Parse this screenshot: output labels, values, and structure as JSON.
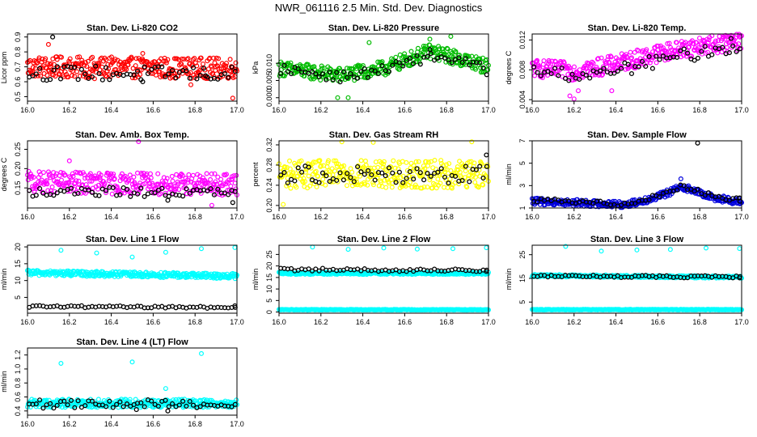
{
  "page_title": "NWR_061116  2.5 Min. Std. Dev. Diagnostics",
  "chart_data": [
    {
      "type": "scatter",
      "title": "Stan. Dev. Li-820 CO2",
      "ylabel": "Licor ppm",
      "color": "#ff0000",
      "xlim": [
        16.0,
        17.0
      ],
      "ylim": [
        0.47,
        0.92
      ],
      "xticks": [
        16.0,
        16.2,
        16.4,
        16.6,
        16.8,
        17.0
      ],
      "xtick_labels": [
        "16.0",
        "16.2",
        "16.4",
        "16.6",
        "16.8",
        "17.0"
      ],
      "yticks": [
        0.5,
        0.6,
        0.7,
        0.8,
        0.9
      ],
      "ytick_labels": [
        "0.5",
        "0.6",
        "0.7",
        "0.8",
        "0.9"
      ],
      "trend": [
        [
          16.0,
          0.7
        ],
        [
          17.0,
          0.69
        ]
      ],
      "spread": 0.07,
      "black_trend": [
        [
          16.0,
          0.66
        ],
        [
          17.0,
          0.65
        ]
      ],
      "black_spread": 0.05,
      "series": [
        {
          "name": "colored",
          "x": [
            16.1,
            16.32,
            16.55,
            16.78,
            16.98
          ],
          "y": [
            0.85,
            0.62,
            0.79,
            0.58,
            0.49
          ]
        },
        {
          "name": "black",
          "x": [
            16.12,
            16.55,
            16.85
          ],
          "y": [
            0.9,
            0.6,
            0.64
          ]
        }
      ]
    },
    {
      "type": "scatter",
      "title": "Stan. Dev. Li-820 Pressure",
      "ylabel": "kPa",
      "color": "#00bb00",
      "xlim": [
        16.0,
        17.0
      ],
      "ylim": [
        -0.001,
        0.0185
      ],
      "xticks": [
        16.0,
        16.2,
        16.4,
        16.6,
        16.8,
        17.0
      ],
      "xtick_labels": [
        "16.0",
        "16.2",
        "16.4",
        "16.6",
        "16.8",
        "17.0"
      ],
      "yticks": [
        0.0,
        0.005,
        0.01
      ],
      "ytick_labels": [
        "0.000",
        "0.005",
        "0.010"
      ],
      "trend": [
        [
          16.0,
          0.0085
        ],
        [
          16.3,
          0.0065
        ],
        [
          16.5,
          0.0085
        ],
        [
          16.72,
          0.0135
        ],
        [
          16.85,
          0.0115
        ],
        [
          17.0,
          0.009
        ]
      ],
      "spread": 0.0022,
      "black_trend": [
        [
          16.0,
          0.0085
        ],
        [
          16.3,
          0.006
        ],
        [
          16.5,
          0.008
        ],
        [
          16.72,
          0.012
        ],
        [
          16.85,
          0.011
        ],
        [
          17.0,
          0.008
        ]
      ],
      "black_spread": 0.0015,
      "series": [
        {
          "name": "colored",
          "x": [
            16.28,
            16.33,
            16.72,
            16.82,
            16.43
          ],
          "y": [
            0.0,
            0.0,
            0.017,
            0.0178,
            0.016
          ]
        },
        {
          "name": "black",
          "x": [
            16.72
          ],
          "y": [
            0.014
          ]
        }
      ]
    },
    {
      "type": "scatter",
      "title": "Stan. Dev. Li-820 Temp.",
      "ylabel": "degrees C",
      "color": "#ff00ff",
      "xlim": [
        16.0,
        17.0
      ],
      "ylim": [
        0.0038,
        0.0128
      ],
      "xticks": [
        16.0,
        16.2,
        16.4,
        16.6,
        16.8,
        17.0
      ],
      "xtick_labels": [
        "16.0",
        "16.2",
        "16.4",
        "16.6",
        "16.8",
        "17.0"
      ],
      "yticks": [
        0.004,
        0.008,
        0.012
      ],
      "ytick_labels": [
        "0.004",
        "0.008",
        "0.012"
      ],
      "trend": [
        [
          16.0,
          0.0082
        ],
        [
          16.2,
          0.0078
        ],
        [
          16.4,
          0.0088
        ],
        [
          16.6,
          0.0102
        ],
        [
          16.8,
          0.0112
        ],
        [
          17.0,
          0.0118
        ]
      ],
      "spread": 0.0012,
      "black_trend": [
        [
          16.0,
          0.0078
        ],
        [
          16.3,
          0.0072
        ],
        [
          16.5,
          0.0085
        ],
        [
          16.7,
          0.0098
        ],
        [
          17.0,
          0.0112
        ]
      ],
      "black_spread": 0.0009,
      "series": [
        {
          "name": "colored",
          "x": [
            16.18,
            16.2,
            16.22,
            16.38,
            16.93
          ],
          "y": [
            0.0045,
            0.0041,
            0.0052,
            0.0052,
            0.0125
          ]
        },
        {
          "name": "black",
          "x": [
            16.95
          ],
          "y": [
            0.0122
          ]
        }
      ]
    },
    {
      "type": "scatter",
      "title": "Stan. Dev. Amb. Box Temp.",
      "ylabel": "degrees C",
      "color": "#ff00ff",
      "xlim": [
        16.0,
        17.0
      ],
      "ylim": [
        0.098,
        0.272
      ],
      "xticks": [
        16.0,
        16.2,
        16.4,
        16.6,
        16.8,
        17.0
      ],
      "xtick_labels": [
        "16.0",
        "16.2",
        "16.4",
        "16.6",
        "16.8",
        "17.0"
      ],
      "yticks": [
        0.15,
        0.2,
        0.25
      ],
      "ytick_labels": [
        "0.15",
        "0.20",
        "0.25"
      ],
      "trend": [
        [
          16.0,
          0.165
        ],
        [
          17.0,
          0.158
        ]
      ],
      "spread": 0.028,
      "black_trend": [
        [
          16.0,
          0.14
        ],
        [
          17.0,
          0.138
        ]
      ],
      "black_spread": 0.012,
      "series": [
        {
          "name": "colored",
          "x": [
            16.53,
            16.2,
            16.88
          ],
          "y": [
            0.27,
            0.22,
            0.105
          ]
        },
        {
          "name": "black",
          "x": [
            16.67,
            16.98
          ],
          "y": [
            0.118,
            0.112
          ]
        }
      ]
    },
    {
      "type": "scatter",
      "title": "Stan. Dev. Gas Stream RH",
      "ylabel": "percent",
      "color": "#ffff00",
      "xlim": [
        16.0,
        17.0
      ],
      "ylim": [
        0.195,
        0.328
      ],
      "xticks": [
        16.0,
        16.2,
        16.4,
        16.6,
        16.8,
        17.0
      ],
      "xtick_labels": [
        "16.0",
        "16.2",
        "16.4",
        "16.6",
        "16.8",
        "17.0"
      ],
      "yticks": [
        0.2,
        0.24,
        0.28,
        0.32
      ],
      "ytick_labels": [
        "0.20",
        "0.24",
        "0.28",
        "0.32"
      ],
      "trend": [
        [
          16.0,
          0.262
        ],
        [
          17.0,
          0.262
        ]
      ],
      "spread": 0.028,
      "black_trend": [
        [
          16.0,
          0.262
        ],
        [
          17.0,
          0.262
        ]
      ],
      "black_spread": 0.018,
      "series": [
        {
          "name": "colored",
          "x": [
            16.3,
            16.45,
            16.92,
            16.02
          ],
          "y": [
            0.326,
            0.325,
            0.326,
            0.202
          ]
        },
        {
          "name": "black",
          "x": [
            16.99
          ],
          "y": [
            0.3
          ]
        }
      ]
    },
    {
      "type": "scatter",
      "title": "Stan. Dev. Sample Flow",
      "ylabel": "ml/min",
      "color": "#0000dd",
      "xlim": [
        16.0,
        17.0
      ],
      "ylim": [
        1.0,
        7.0
      ],
      "xticks": [
        16.0,
        16.2,
        16.4,
        16.6,
        16.8,
        17.0
      ],
      "xtick_labels": [
        "16.0",
        "16.2",
        "16.4",
        "16.6",
        "16.8",
        "17.0"
      ],
      "yticks": [
        1,
        3,
        5,
        7
      ],
      "ytick_labels": [
        "1",
        "3",
        "5",
        "7"
      ],
      "trend": [
        [
          16.0,
          1.6
        ],
        [
          16.3,
          1.4
        ],
        [
          16.45,
          1.3
        ],
        [
          16.6,
          2.0
        ],
        [
          16.72,
          2.9
        ],
        [
          16.85,
          2.0
        ],
        [
          17.0,
          1.5
        ]
      ],
      "spread": 0.3,
      "black_trend": [
        [
          16.0,
          1.7
        ],
        [
          16.3,
          1.45
        ],
        [
          16.45,
          1.35
        ],
        [
          16.6,
          2.1
        ],
        [
          16.72,
          3.0
        ],
        [
          16.85,
          2.1
        ],
        [
          17.0,
          1.7
        ]
      ],
      "black_spread": 0.2,
      "series": [
        {
          "name": "colored",
          "x": [
            16.71
          ],
          "y": [
            3.6
          ]
        },
        {
          "name": "black",
          "x": [
            16.79,
            16.99
          ],
          "y": [
            6.8,
            1.9
          ]
        }
      ]
    },
    {
      "type": "scatter",
      "title": "Stan. Dev. Line 1 Flow",
      "ylabel": "ml/min",
      "color": "#00ffff",
      "xlim": [
        16.0,
        17.0
      ],
      "ylim": [
        0.3,
        20.5
      ],
      "xticks": [
        16.0,
        16.2,
        16.4,
        16.6,
        16.8,
        17.0
      ],
      "xtick_labels": [
        "16.0",
        "16.2",
        "16.4",
        "16.6",
        "16.8",
        "17.0"
      ],
      "yticks": [
        5,
        10,
        15,
        20
      ],
      "ytick_labels": [
        "5",
        "10",
        "15",
        "20"
      ],
      "trend": [
        [
          16.0,
          12.3
        ],
        [
          17.0,
          11.3
        ]
      ],
      "spread": 0.8,
      "black_trend": [
        [
          16.0,
          2.3
        ],
        [
          17.0,
          2.0
        ]
      ],
      "black_spread": 0.3,
      "series": [
        {
          "name": "colored",
          "x": [
            16.16,
            16.33,
            16.5,
            16.66,
            16.83,
            16.99
          ],
          "y": [
            19.0,
            18.2,
            17.0,
            18.4,
            19.5,
            19.8
          ]
        },
        {
          "name": "black",
          "x": [
            16.99
          ],
          "y": [
            2.5
          ]
        }
      ]
    },
    {
      "type": "scatter",
      "title": "Stan. Dev. Line 2 Flow",
      "ylabel": "ml/min",
      "color": "#00ffff",
      "xlim": [
        16.0,
        17.0
      ],
      "ylim": [
        -0.5,
        29.0
      ],
      "xticks": [
        16.0,
        16.2,
        16.4,
        16.6,
        16.8,
        17.0
      ],
      "xtick_labels": [
        "16.0",
        "16.2",
        "16.4",
        "16.6",
        "16.8",
        "17.0"
      ],
      "yticks": [
        0,
        5,
        10,
        15,
        20,
        25
      ],
      "ytick_labels": [
        "0",
        "5",
        "10",
        "15",
        "20",
        "25"
      ],
      "trend": [
        [
          16.0,
          16.8
        ],
        [
          17.0,
          16.8
        ]
      ],
      "spread": 0.5,
      "black_trend": [
        [
          16.0,
          18.5
        ],
        [
          17.0,
          18.0
        ]
      ],
      "black_spread": 0.6,
      "baseline": 1.0,
      "series": [
        {
          "name": "colored",
          "x": [
            16.16,
            16.33,
            16.5,
            16.66,
            16.83,
            16.99
          ],
          "y": [
            28.2,
            27.2,
            27.8,
            27.3,
            27.5,
            27.9
          ]
        },
        {
          "name": "black",
          "x": [
            16.99
          ],
          "y": [
            17.6
          ]
        }
      ]
    },
    {
      "type": "scatter",
      "title": "Stan. Dev. Line 3 Flow",
      "ylabel": "ml/min",
      "color": "#00ffff",
      "xlim": [
        16.0,
        17.0
      ],
      "ylim": [
        0.3,
        29.0
      ],
      "xticks": [
        16.0,
        16.2,
        16.4,
        16.6,
        16.8,
        17.0
      ],
      "xtick_labels": [
        "16.0",
        "16.2",
        "16.4",
        "16.6",
        "16.8",
        "17.0"
      ],
      "yticks": [
        5,
        15,
        25
      ],
      "ytick_labels": [
        "5",
        "15",
        "25"
      ],
      "trend": [
        [
          16.0,
          16.2
        ],
        [
          17.0,
          15.5
        ]
      ],
      "spread": 0.5,
      "black_trend": [
        [
          16.0,
          16.0
        ],
        [
          17.0,
          15.6
        ]
      ],
      "black_spread": 0.5,
      "baseline": 1.8,
      "series": [
        {
          "name": "colored",
          "x": [
            16.16,
            16.33,
            16.5,
            16.66,
            16.83,
            16.99
          ],
          "y": [
            28.5,
            26.5,
            27.0,
            27.2,
            27.8,
            27.6
          ]
        },
        {
          "name": "black",
          "x": [
            16.99
          ],
          "y": [
            15.2
          ]
        }
      ]
    },
    {
      "type": "scatter",
      "title": "Stan. Dev. Line 4 (LT) Flow",
      "ylabel": "ml/min",
      "color": "#00ffff",
      "xlim": [
        16.0,
        17.0
      ],
      "ylim": [
        0.34,
        1.3
      ],
      "xticks": [
        16.0,
        16.2,
        16.4,
        16.6,
        16.8,
        17.0
      ],
      "xtick_labels": [
        "16.0",
        "16.2",
        "16.4",
        "16.6",
        "16.8",
        "17.0"
      ],
      "yticks": [
        0.4,
        0.6,
        0.8,
        1.0,
        1.2
      ],
      "ytick_labels": [
        "0.4",
        "0.6",
        "0.8",
        "1.0",
        "1.2"
      ],
      "trend": [
        [
          16.0,
          0.51
        ],
        [
          17.0,
          0.51
        ]
      ],
      "spread": 0.06,
      "black_trend": [
        [
          16.0,
          0.5
        ],
        [
          17.0,
          0.5
        ]
      ],
      "black_spread": 0.06,
      "series": [
        {
          "name": "colored",
          "x": [
            16.16,
            16.5,
            16.66,
            16.83
          ],
          "y": [
            1.08,
            1.1,
            0.72,
            1.22
          ]
        },
        {
          "name": "black",
          "x": [
            16.52,
            16.67
          ],
          "y": [
            0.42,
            0.4
          ]
        }
      ]
    }
  ]
}
